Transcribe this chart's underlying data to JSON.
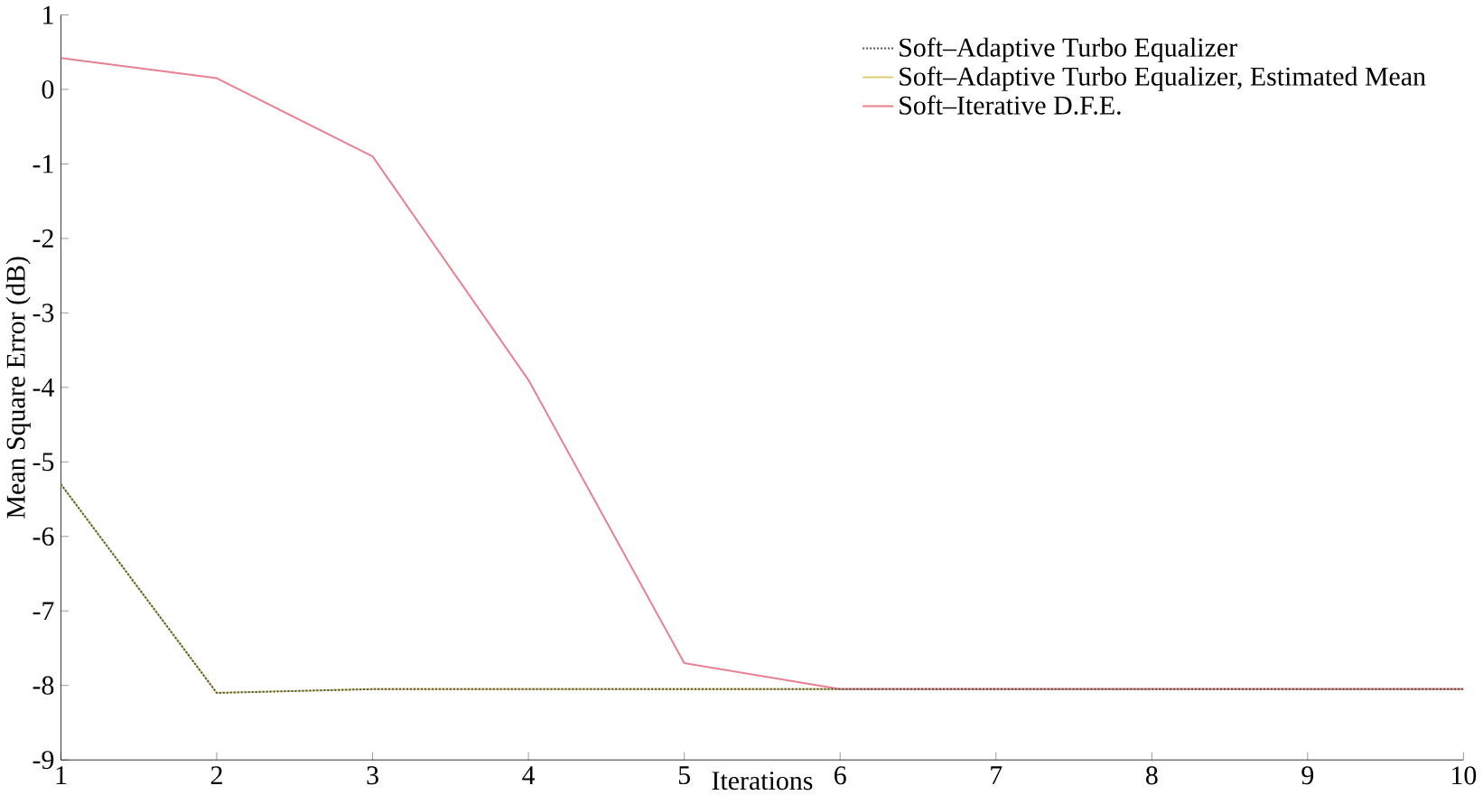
{
  "chart_data": {
    "type": "line",
    "xlabel": "Iterations",
    "ylabel": "Mean Square Error (dB)",
    "x": [
      1,
      2,
      3,
      4,
      5,
      6,
      7,
      8,
      9,
      10
    ],
    "series": [
      {
        "name": "Soft–Adaptive Turbo Equalizer",
        "color": "#505050",
        "line_style": "dotted",
        "values": [
          -5.3,
          -8.1,
          -8.05,
          -8.05,
          -8.05,
          -8.05,
          -8.05,
          -8.05,
          -8.05,
          -8.05
        ]
      },
      {
        "name": "Soft–Adaptive Turbo Equalizer, Estimated Mean",
        "color": "#d8d070",
        "line_style": "solid",
        "values": [
          -5.3,
          -8.1,
          -8.05,
          -8.05,
          -8.05,
          -8.05,
          -8.05,
          -8.05,
          -8.05,
          -8.05
        ]
      },
      {
        "name": "Soft–Iterative D.F.E.",
        "color": "#e88090",
        "line_style": "solid",
        "values": [
          0.42,
          0.15,
          -0.9,
          -3.9,
          -7.7,
          -8.05,
          -8.05,
          -8.05,
          -8.05,
          -8.05
        ]
      }
    ],
    "xlim": [
      1,
      10
    ],
    "xticks": [
      1,
      2,
      3,
      4,
      5,
      6,
      7,
      8,
      9,
      10
    ],
    "ylim": [
      -9,
      1
    ],
    "yticks": [
      -9,
      -8,
      -7,
      -6,
      -5,
      -4,
      -3,
      -2,
      -1,
      0,
      1
    ],
    "grid": false,
    "legend": "top right",
    "marker": "none"
  }
}
